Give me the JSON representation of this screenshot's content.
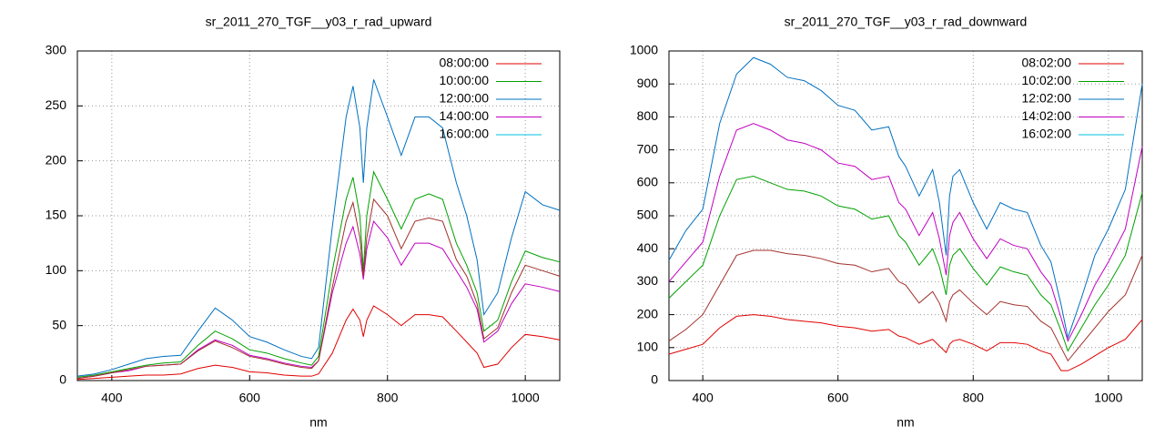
{
  "chart_data": [
    {
      "type": "line",
      "title": "sr_2011_270_TGF__y03_r_rad_upward",
      "x_label": "nm",
      "x": [
        350,
        375,
        400,
        425,
        450,
        475,
        500,
        525,
        550,
        575,
        600,
        625,
        650,
        675,
        690,
        700,
        720,
        740,
        750,
        760,
        765,
        770,
        780,
        800,
        820,
        840,
        860,
        880,
        900,
        915,
        930,
        940,
        960,
        980,
        1000,
        1025,
        1050
      ],
      "xlim": [
        350,
        1050
      ],
      "xticks": [
        400,
        600,
        800,
        1000
      ],
      "ylim": [
        0,
        300
      ],
      "yticks": [
        0,
        50,
        100,
        150,
        200,
        250,
        300
      ],
      "grid": true,
      "legend": "top-right",
      "series": [
        {
          "name": "08:00:00",
          "color": "#e00000",
          "values": [
            1,
            2,
            3,
            4,
            5,
            5,
            6,
            11,
            14,
            12,
            8,
            7,
            5,
            4,
            4,
            6,
            25,
            55,
            65,
            55,
            40,
            55,
            68,
            60,
            50,
            60,
            60,
            58,
            45,
            35,
            25,
            12,
            15,
            30,
            42,
            40,
            37
          ]
        },
        {
          "name": "10:00:00",
          "color": "#00a000",
          "values": [
            3,
            5,
            8,
            11,
            14,
            16,
            17,
            32,
            45,
            38,
            28,
            25,
            20,
            16,
            14,
            22,
            100,
            165,
            185,
            150,
            100,
            150,
            190,
            165,
            138,
            165,
            170,
            165,
            125,
            105,
            80,
            45,
            55,
            90,
            118,
            112,
            108
          ]
        },
        {
          "name": "12:00:00",
          "color": "#0070c0",
          "values": [
            4,
            6,
            10,
            15,
            20,
            22,
            23,
            45,
            66,
            55,
            40,
            35,
            28,
            22,
            20,
            30,
            140,
            240,
            268,
            230,
            180,
            230,
            274,
            240,
            205,
            240,
            240,
            230,
            180,
            150,
            110,
            60,
            80,
            130,
            172,
            160,
            155
          ]
        },
        {
          "name": "14:00:00",
          "color": "#c000c0",
          "values": [
            2,
            4,
            7,
            9,
            13,
            14,
            15,
            28,
            37,
            32,
            23,
            20,
            16,
            13,
            12,
            18,
            80,
            125,
            140,
            115,
            92,
            120,
            145,
            130,
            105,
            125,
            125,
            120,
            100,
            85,
            65,
            35,
            45,
            70,
            88,
            85,
            81
          ]
        },
        {
          "name": "16:00:00",
          "color": "#00c0e0",
          "values": [
            null,
            null,
            null,
            null,
            null,
            null,
            null,
            null,
            null,
            null,
            null,
            null,
            null,
            null,
            null,
            null,
            null,
            null,
            null,
            null,
            null,
            null,
            null,
            null,
            null,
            null,
            null,
            null,
            null,
            null,
            null,
            null,
            null,
            null,
            null,
            null,
            null
          ]
        },
        {
          "color": "#a0302a",
          "values": [
            2,
            4,
            7,
            10,
            13,
            14,
            15,
            27,
            36,
            30,
            22,
            19,
            15,
            12,
            11,
            18,
            85,
            145,
            162,
            130,
            95,
            130,
            165,
            150,
            120,
            145,
            148,
            145,
            110,
            95,
            70,
            38,
            48,
            80,
            105,
            100,
            95
          ]
        }
      ]
    },
    {
      "type": "line",
      "title": "sr_2011_270_TGF__y03_r_rad_downward",
      "x_label": "nm",
      "x": [
        350,
        375,
        400,
        425,
        450,
        475,
        500,
        525,
        550,
        575,
        600,
        625,
        650,
        675,
        690,
        700,
        720,
        740,
        750,
        760,
        765,
        770,
        780,
        800,
        820,
        840,
        860,
        880,
        900,
        915,
        930,
        940,
        960,
        980,
        1000,
        1025,
        1050
      ],
      "xlim": [
        350,
        1050
      ],
      "xticks": [
        400,
        600,
        800,
        1000
      ],
      "ylim": [
        0,
        1000
      ],
      "yticks": [
        0,
        100,
        200,
        300,
        400,
        500,
        600,
        700,
        800,
        900,
        1000
      ],
      "grid": true,
      "legend": "top-right",
      "series": [
        {
          "name": "08:02:00",
          "color": "#e00000",
          "values": [
            80,
            95,
            110,
            160,
            195,
            200,
            195,
            185,
            180,
            175,
            165,
            160,
            150,
            155,
            135,
            130,
            110,
            125,
            105,
            85,
            110,
            120,
            125,
            110,
            90,
            115,
            115,
            110,
            90,
            80,
            30,
            30,
            50,
            75,
            100,
            125,
            185
          ]
        },
        {
          "name": "10:02:00",
          "color": "#00a000",
          "values": [
            250,
            300,
            350,
            500,
            610,
            620,
            600,
            580,
            575,
            560,
            530,
            520,
            490,
            500,
            440,
            420,
            350,
            400,
            345,
            260,
            350,
            380,
            400,
            340,
            290,
            345,
            330,
            320,
            260,
            230,
            150,
            90,
            160,
            230,
            290,
            380,
            570
          ]
        },
        {
          "name": "12:02:00",
          "color": "#0070c0",
          "values": [
            365,
            455,
            520,
            780,
            930,
            980,
            960,
            920,
            910,
            880,
            835,
            820,
            760,
            770,
            680,
            650,
            560,
            640,
            540,
            380,
            560,
            620,
            640,
            540,
            460,
            540,
            520,
            510,
            410,
            360,
            230,
            130,
            250,
            380,
            460,
            580,
            900
          ]
        },
        {
          "name": "14:02:00",
          "color": "#c000c0",
          "values": [
            300,
            360,
            420,
            620,
            760,
            780,
            760,
            730,
            720,
            700,
            660,
            650,
            610,
            620,
            540,
            520,
            440,
            510,
            430,
            320,
            440,
            480,
            510,
            430,
            370,
            430,
            410,
            400,
            330,
            290,
            190,
            120,
            200,
            290,
            360,
            460,
            710
          ]
        },
        {
          "name": "16:02:00",
          "color": "#00c0e0",
          "values": [
            null,
            null,
            null,
            null,
            null,
            null,
            null,
            null,
            null,
            null,
            null,
            null,
            null,
            null,
            null,
            null,
            null,
            null,
            null,
            null,
            null,
            null,
            null,
            null,
            null,
            null,
            null,
            null,
            null,
            null,
            null,
            null,
            null,
            null,
            null,
            null,
            null
          ]
        },
        {
          "color": "#a0302a",
          "values": [
            120,
            155,
            200,
            290,
            380,
            395,
            395,
            385,
            380,
            370,
            355,
            350,
            330,
            340,
            300,
            290,
            235,
            270,
            235,
            180,
            240,
            260,
            275,
            235,
            200,
            240,
            230,
            225,
            180,
            160,
            100,
            60,
            110,
            160,
            210,
            260,
            380
          ]
        }
      ]
    }
  ]
}
